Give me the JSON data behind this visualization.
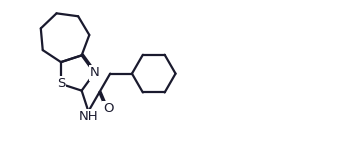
{
  "bg_color": "#ffffff",
  "line_color": "#1a1a2e",
  "line_width": 1.6,
  "figsize": [
    3.44,
    1.46
  ],
  "dpi": 100,
  "xlim": [
    0,
    3.44
  ],
  "ylim": [
    0,
    1.46
  ]
}
